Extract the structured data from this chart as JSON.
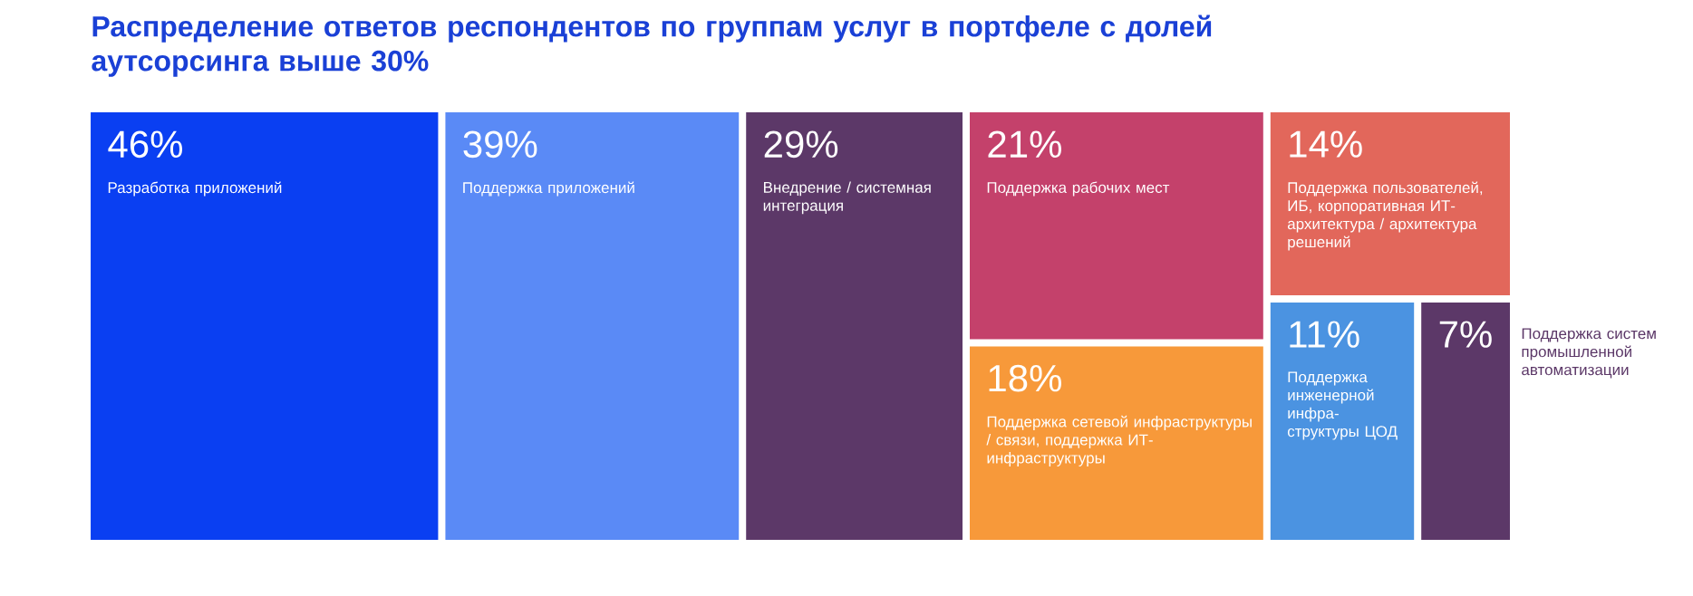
{
  "chart_data": {
    "type": "other",
    "title": "Распределение ответов респондентов по группам услуг в портфеле с долей аутсорсинга выше 30%",
    "categories": [
      "Разработка приложений",
      "Поддержка приложений",
      "Внедрение / системная интеграция",
      "Поддержка рабочих мест",
      "Поддержка сетевой инфраструктуры / связи, поддержка ИТ-инфраструктуры",
      "Поддержка пользователей, ИБ, корпоративная ИТ-архитектура / архитектура решений",
      "Поддержка инженерной инфра-структуры ЦОД",
      "Поддержка систем промышленной автоматизации"
    ],
    "values": [
      46,
      39,
      29,
      21,
      18,
      14,
      11,
      7
    ],
    "value_labels": [
      "46%",
      "39%",
      "29%",
      "21%",
      "18%",
      "14%",
      "11%",
      "7%"
    ],
    "colors": [
      "#0a3ff2",
      "#5a8af6",
      "#5c3868",
      "#c4416b",
      "#f7993a",
      "#e2675b",
      "#4b93e1",
      "#5c3868"
    ]
  }
}
